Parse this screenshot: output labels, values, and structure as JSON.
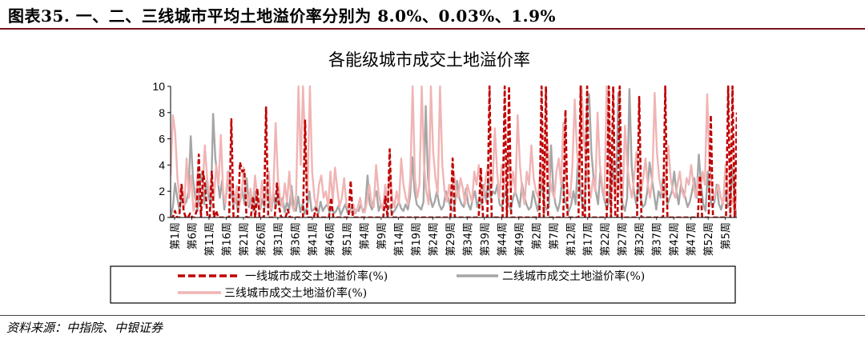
{
  "figure": {
    "title": "图表35. 一、二、三线城市平均土地溢价率分别为 8.0%、0.03%、1.9%",
    "source": "资料来源：中指院、中银证券"
  },
  "chart_data": {
    "type": "line",
    "title": "各能级城市成交土地溢价率",
    "ylim": [
      0,
      10
    ],
    "yticks": [
      0,
      2,
      4,
      6,
      8,
      10
    ],
    "grid": false,
    "legend_position": "bottom",
    "x_tick_labels": [
      "第1周",
      "第6周",
      "第11周",
      "第16周",
      "第21周",
      "第26周",
      "第31周",
      "第36周",
      "第41周",
      "第46周",
      "第51周",
      "第4周",
      "第9周",
      "第14周",
      "第19周",
      "第24周",
      "第29周",
      "第34周",
      "第39周",
      "第44周",
      "第49周",
      "第2周",
      "第7周",
      "第12周",
      "第17周",
      "第22周",
      "第27周",
      "第32周",
      "第37周",
      "第42周",
      "第47周",
      "第52周",
      "第5周"
    ],
    "series": [
      {
        "name": "一线城市成交土地溢价率(%)",
        "color": "#c00000",
        "style": "dashed",
        "values": [
          0,
          0,
          0.5,
          0,
          0,
          2.5,
          0.5,
          0,
          0,
          0.3,
          0,
          0,
          0.5,
          4.8,
          0,
          3.5,
          2.2,
          0,
          0,
          3.5,
          0,
          0.5,
          0,
          0,
          0,
          0,
          0,
          0,
          7.5,
          0,
          0,
          0,
          4.2,
          3.5,
          3.6,
          0,
          0,
          0,
          1.6,
          0,
          2.2,
          0,
          0,
          0,
          8.4,
          0,
          0,
          0,
          0,
          2.6,
          0.8,
          0,
          0,
          0,
          0.6,
          0,
          0,
          0,
          0,
          0,
          0,
          0,
          7.4,
          0,
          0,
          0,
          0,
          0.7,
          0,
          0,
          0,
          0,
          0,
          0,
          1.5,
          0,
          0,
          0,
          0,
          0,
          0,
          0,
          0,
          2.8,
          0,
          0,
          0,
          0,
          0,
          0,
          0,
          0,
          0,
          0,
          0,
          0,
          0,
          0,
          0,
          1.6,
          0,
          5.2,
          0,
          0,
          0,
          0,
          0,
          0,
          0,
          0,
          0,
          0,
          0,
          0,
          0,
          0,
          0,
          0,
          0,
          0,
          0,
          0,
          0,
          0,
          0,
          0,
          0,
          0,
          0,
          0,
          4.5,
          0,
          0,
          0,
          0,
          0,
          0,
          0,
          0,
          0,
          0,
          0,
          0,
          3.8,
          0,
          0,
          0,
          10,
          0,
          0,
          0,
          0,
          0,
          0,
          10,
          0,
          10,
          0,
          0,
          0,
          0,
          0,
          0,
          0,
          0,
          0,
          0,
          0,
          0,
          0,
          0,
          10,
          0,
          10,
          0,
          0,
          0,
          0,
          0,
          0,
          0,
          0,
          8.2,
          0,
          0,
          0,
          0,
          0,
          0,
          10,
          0,
          0,
          10,
          0,
          0,
          0,
          0,
          0,
          0,
          0,
          0,
          0,
          10,
          0,
          10,
          0,
          0,
          10,
          0,
          0,
          0,
          0,
          0,
          0,
          0,
          0,
          9.2,
          0,
          0,
          0,
          0,
          0,
          0,
          0,
          0,
          0,
          0,
          0,
          10,
          0,
          0,
          0,
          0,
          0,
          0,
          0,
          0,
          0,
          0,
          0,
          0,
          0,
          0,
          0,
          3.2,
          0,
          0,
          0,
          0,
          7.8,
          0,
          0,
          0,
          0,
          0,
          0,
          0,
          10,
          0,
          10,
          0,
          8.0
        ]
      },
      {
        "name": "二线城市成交土地溢价率(%)",
        "color": "#a6a6a6",
        "style": "solid",
        "values": [
          0,
          0.8,
          2.6,
          1.5,
          0.5,
          1.8,
          0.9,
          1.2,
          2.0,
          6.2,
          3.0,
          1.5,
          0.5,
          2.4,
          3.5,
          1.0,
          2.8,
          1.6,
          0.8,
          7.9,
          4.5,
          3.0,
          1.5,
          2.8,
          0.6,
          1.9,
          3.5,
          2.0,
          1.0,
          1.8,
          0.5,
          1.2,
          2.2,
          1.0,
          3.0,
          0.8,
          1.5,
          0.5,
          2.0,
          1.0,
          0.6,
          1.4,
          0.8,
          2.6,
          1.0,
          0.5,
          1.8,
          0.7,
          2.0,
          0.9,
          1.5,
          0.4,
          1.2,
          0.6,
          2.4,
          0.8,
          0.5,
          1.6,
          0.4,
          1.0,
          0.3,
          0.8,
          2.0,
          0.5,
          0.6,
          0.9,
          0.3,
          1.2,
          0.5,
          0.8,
          1.0,
          0.4,
          0.7,
          0.3,
          0.5,
          0.9,
          0.2,
          0.6,
          1.0,
          0.4,
          0.5,
          0.8,
          0.3,
          0.6,
          0.5,
          1.0,
          0.4,
          0.8,
          3.2,
          1.0,
          0.6,
          1.5,
          2.0,
          0.5,
          1.0,
          0.8,
          1.2,
          0.6,
          0.9,
          0.3,
          0.5,
          0.8,
          1.2,
          0.7,
          0.5,
          1.0,
          0.6,
          1.6,
          4.6,
          2.0,
          1.0,
          0.8,
          0.6,
          1.2,
          8.5,
          3.0,
          1.5,
          0.8,
          1.2,
          2.0,
          1.0,
          0.6,
          0.9,
          2.0,
          1.5,
          0.8,
          0.5,
          1.0,
          2.8,
          1.5,
          1.0,
          0.8,
          2.2,
          1.0,
          0.6,
          1.4,
          2.0,
          0.8,
          1.5,
          1.0,
          2.5,
          1.2,
          3.0,
          1.5,
          2.0,
          1.8,
          2.5,
          1.0,
          0.8,
          1.6,
          2.2,
          1.0,
          0.6,
          1.5,
          2.0,
          1.4,
          0.8,
          2.6,
          1.6,
          1.0,
          0.6,
          0.8,
          2.0,
          1.2,
          0.5,
          1.5,
          2.8,
          1.0,
          0.6,
          0.8,
          5.5,
          2.0,
          1.0,
          0.5,
          1.2,
          3.0,
          1.5,
          0.8,
          0.5,
          1.0,
          2.0,
          1.0,
          4.5,
          2.0,
          1.0,
          0.5,
          8.5,
          9.4,
          5.0,
          3.0,
          2.0,
          1.0,
          3.5,
          2.0,
          1.2,
          0.6,
          1.5,
          4.5,
          3.0,
          1.5,
          9.5,
          2.0,
          1.0,
          0.5,
          1.5,
          9.8,
          4.0,
          2.0,
          1.0,
          2.5,
          1.5,
          0.8,
          1.0,
          2.0,
          4.2,
          3.0,
          1.8,
          0.6,
          2.0,
          1.5,
          3.0,
          2.5,
          1.0,
          1.5,
          2.0,
          3.5,
          2.0,
          1.0,
          2.5,
          2.0,
          1.5,
          0.8,
          1.2,
          2.0,
          3.0,
          1.5,
          4.8,
          2.5,
          1.0,
          0.5,
          3.5,
          1.5,
          0.8,
          1.2,
          2.5,
          1.0,
          0.6,
          1.5,
          2.0,
          0.8,
          1.2,
          3.8,
          1.0,
          0.03
        ]
      },
      {
        "name": "三线城市成交土地溢价率(%)",
        "color": "#f0b4b4",
        "style": "solid",
        "values": [
          3.2,
          7.8,
          6.5,
          3.0,
          1.5,
          2.5,
          0.8,
          4.5,
          1.5,
          3.2,
          0.5,
          1.2,
          3.5,
          1.0,
          2.2,
          5.5,
          3.0,
          1.8,
          2.8,
          1.5,
          4.0,
          2.5,
          6.3,
          2.0,
          1.0,
          3.5,
          1.8,
          2.6,
          1.0,
          2.4,
          0.8,
          1.6,
          3.8,
          2.0,
          1.0,
          2.2,
          0.8,
          3.2,
          1.5,
          0.6,
          2.8,
          1.0,
          1.8,
          3.5,
          0.6,
          2.0,
          7.2,
          3.0,
          1.4,
          0.8,
          2.6,
          1.2,
          3.5,
          1.0,
          0.5,
          1.8,
          10,
          4.0,
          10,
          5.0,
          2.0,
          10,
          3.5,
          1.5,
          0.8,
          2.5,
          3.2,
          1.5,
          2.0,
          0.8,
          3.5,
          1.2,
          3.8,
          2.2,
          0.8,
          1.5,
          3.0,
          1.0,
          0.6,
          0.4,
          1.0,
          0.3,
          0.8,
          1.5,
          0.5,
          0.4,
          1.2,
          2.5,
          1.0,
          0.8,
          4.0,
          2.0,
          1.0,
          0.6,
          2.5,
          1.2,
          3.5,
          1.5,
          0.8,
          2.0,
          1.0,
          4.5,
          2.5,
          1.5,
          1.0,
          3.0,
          10,
          3.0,
          1.5,
          2.5,
          10,
          4.0,
          2.0,
          1.0,
          10,
          5.0,
          3.0,
          1.8,
          10,
          4.0,
          2.0,
          1.2,
          2.5,
          1.0,
          3.5,
          2.0,
          1.5,
          3.0,
          2.2,
          1.0,
          2.5,
          1.8,
          1.2,
          3.5,
          2.5,
          4.0,
          2.0,
          1.5,
          3.0,
          4.0,
          3.2,
          2.5,
          6.8,
          3.5,
          1.5,
          4.0,
          2.5,
          3.0,
          5.0,
          2.0,
          3.5,
          1.8,
          7.8,
          4.0,
          2.0,
          1.0,
          3.5,
          2.5,
          5.5,
          3.0,
          2.0,
          1.5,
          3.8,
          2.5,
          4.0,
          6.0,
          3.0,
          2.0,
          1.5,
          3.5,
          4.5,
          2.5,
          7.2,
          3.5,
          2.0,
          1.5,
          4.0,
          9.0,
          5.0,
          3.0,
          10,
          6.0,
          4.0,
          2.5,
          1.5,
          3.0,
          2.0,
          8.0,
          4.0,
          2.5,
          1.5,
          10,
          5.0,
          3.0,
          2.5,
          1.5,
          3.5,
          2.0,
          1.5,
          7.0,
          4.0,
          2.5,
          1.5,
          3.0,
          5.0,
          3.5,
          2.0,
          3.0,
          4.5,
          2.5,
          1.5,
          3.0,
          9.5,
          5.0,
          3.0,
          2.0,
          1.5,
          3.5,
          5.5,
          3.0,
          2.0,
          1.5,
          2.5,
          3.5,
          2.0,
          1.5,
          3.0,
          2.5,
          4.0,
          2.5,
          1.5,
          3.0,
          2.0,
          3.5,
          2.5,
          9.4,
          4.0,
          2.5,
          1.5,
          2.0,
          2.5,
          1.5,
          1.0,
          4.0,
          2.0,
          1.0,
          1.5,
          0.5,
          1.9
        ]
      }
    ]
  }
}
